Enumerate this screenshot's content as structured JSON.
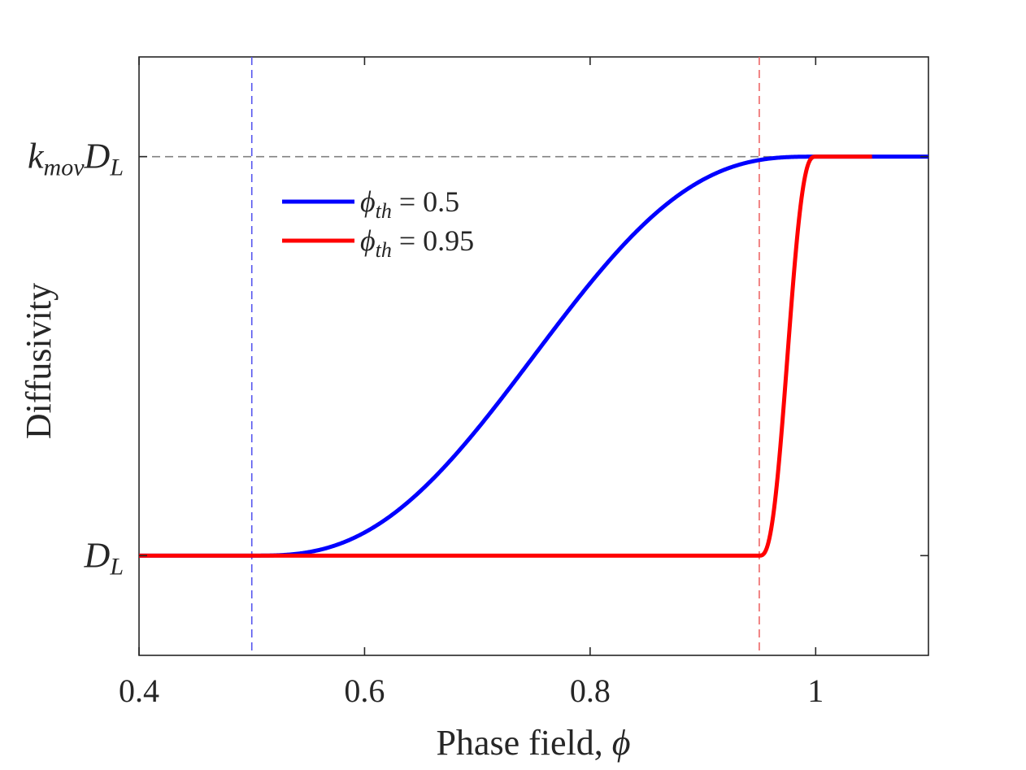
{
  "chart_data": {
    "type": "line",
    "title": "",
    "xlabel": "Phase field, ",
    "xlabel_symbol": "ϕ",
    "ylabel": "Diffusivity",
    "xlim": [
      0.4,
      1.1
    ],
    "ylim": [
      -0.25,
      1.25
    ],
    "xticks": [
      0.4,
      0.6,
      0.8,
      1.0
    ],
    "xtick_labels": [
      "0.4",
      "0.6",
      "0.8",
      "1"
    ],
    "yticks": [
      {
        "value": 0,
        "base": "D",
        "sub": "L",
        "prefix_base": "",
        "prefix_sub": ""
      },
      {
        "value": 1,
        "base": "D",
        "sub": "L",
        "prefix_base": "k",
        "prefix_sub": "mov"
      }
    ],
    "grid": false,
    "legend_position": "upper-left",
    "series": [
      {
        "name": "ϕth = 0.5",
        "symbol": "ϕ",
        "sub": "th",
        "eq": " = 0.5",
        "threshold": 0.5,
        "color": "#0000ff"
      },
      {
        "name": "ϕth = 0.95",
        "symbol": "ϕ",
        "sub": "th",
        "eq": " = 0.95",
        "threshold": 0.95,
        "color": "#ff0000"
      }
    ],
    "reference_lines": [
      {
        "orientation": "vertical",
        "x": 0.5,
        "color": "#5555ee"
      },
      {
        "orientation": "vertical",
        "x": 0.95,
        "color": "#ee6666"
      },
      {
        "orientation": "horizontal",
        "y": 1,
        "color": "#808080"
      }
    ]
  }
}
